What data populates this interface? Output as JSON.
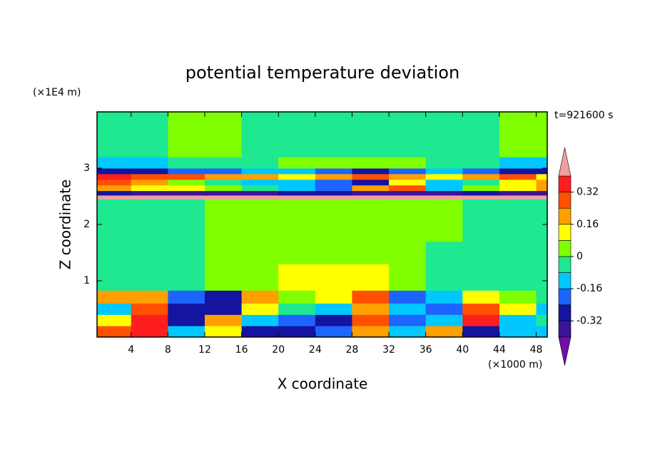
{
  "chart_data": {
    "type": "contourf",
    "title": "potential temperature deviation",
    "x_label": "X coordinate",
    "y_label": "Z coordinate",
    "x_unit": "(×1000 m)",
    "y_unit": "(×1E4 m)",
    "annotation": "t=921600 s",
    "xlim": [
      0.3,
      49.2
    ],
    "ylim": [
      0,
      4
    ],
    "xticks": [
      4,
      8,
      12,
      16,
      20,
      24,
      28,
      32,
      36,
      40,
      44,
      48
    ],
    "yticks": [
      1,
      2,
      3
    ],
    "levels": [
      -0.4,
      -0.32,
      -0.24,
      -0.16,
      -0.08,
      0,
      0.08,
      0.16,
      0.24,
      0.32,
      0.4
    ],
    "colors": [
      "#7010a8",
      "#3c1496",
      "#1414a0",
      "#1e64ff",
      "#00c8ff",
      "#1ee890",
      "#80ff00",
      "#ffff00",
      "#ffa000",
      "#ff5000",
      "#ff1e1e",
      "#f0a0a0"
    ],
    "colorbar_ticks": [
      0.32,
      0.16,
      0,
      -0.16,
      -0.32
    ],
    "x": [
      0,
      4,
      8,
      12,
      16,
      20,
      24,
      28,
      32,
      36,
      40,
      44,
      48,
      52
    ],
    "y": [
      0,
      0.2,
      0.4,
      0.6,
      0.83,
      1.3,
      1.7,
      2.45,
      2.52,
      2.6,
      2.7,
      2.8,
      2.9,
      3.0,
      3.2,
      4.0
    ],
    "values": [
      [
        0.28,
        0.36,
        -0.12,
        0.12,
        -0.28,
        -0.28,
        -0.2,
        0.2,
        -0.12,
        0.2,
        -0.28,
        -0.12,
        -0.12
      ],
      [
        0.12,
        0.36,
        -0.28,
        0.2,
        -0.12,
        -0.2,
        -0.28,
        0.28,
        -0.2,
        -0.12,
        0.36,
        -0.12,
        -0.04
      ],
      [
        -0.12,
        0.28,
        -0.28,
        -0.28,
        0.12,
        -0.04,
        -0.12,
        0.2,
        -0.12,
        -0.2,
        0.28,
        0.12,
        -0.12
      ],
      [
        0.2,
        0.2,
        -0.2,
        -0.28,
        0.2,
        0.04,
        0.12,
        0.28,
        -0.2,
        -0.12,
        0.12,
        0.04,
        -0.04
      ],
      [
        -0.04,
        -0.04,
        -0.04,
        0.04,
        0.04,
        0.12,
        0.12,
        0.12,
        0.04,
        -0.04,
        -0.04,
        -0.04,
        -0.04
      ],
      [
        -0.04,
        -0.04,
        -0.04,
        0.04,
        0.04,
        0.04,
        0.04,
        0.04,
        0.04,
        -0.04,
        -0.04,
        -0.04,
        -0.04
      ],
      [
        -0.04,
        -0.04,
        -0.04,
        0.04,
        0.04,
        0.04,
        0.04,
        0.04,
        0.04,
        0.04,
        -0.04,
        -0.04,
        -0.04
      ],
      [
        0.45,
        0.45,
        0.45,
        0.45,
        0.45,
        0.45,
        0.45,
        0.45,
        0.45,
        0.45,
        0.45,
        0.45,
        0.45
      ],
      [
        -0.28,
        -0.36,
        -0.36,
        -0.36,
        -0.36,
        -0.28,
        -0.28,
        -0.36,
        -0.36,
        -0.36,
        -0.28,
        -0.36,
        -0.36
      ],
      [
        0.2,
        0.12,
        0.12,
        0.04,
        -0.04,
        -0.12,
        -0.2,
        0.2,
        0.28,
        -0.12,
        0.04,
        0.12,
        0.2
      ],
      [
        0.28,
        0.2,
        0.04,
        -0.04,
        -0.12,
        -0.12,
        -0.2,
        -0.28,
        0.12,
        -0.12,
        -0.04,
        0.12,
        0.2
      ],
      [
        0.36,
        0.28,
        0.28,
        0.2,
        0.2,
        0.12,
        0.2,
        0.28,
        0.2,
        0.12,
        0.2,
        0.28,
        0.12
      ],
      [
        -0.28,
        -0.28,
        -0.2,
        -0.2,
        -0.12,
        -0.12,
        -0.2,
        -0.28,
        -0.2,
        -0.12,
        -0.2,
        -0.28,
        -0.28
      ],
      [
        -0.12,
        -0.12,
        -0.04,
        -0.04,
        -0.04,
        0.04,
        0.04,
        0.04,
        0.04,
        -0.04,
        -0.04,
        -0.12,
        -0.12
      ],
      [
        -0.04,
        -0.04,
        0.04,
        0.04,
        -0.04,
        -0.04,
        -0.04,
        -0.04,
        -0.04,
        -0.04,
        -0.04,
        0.04,
        0.04
      ]
    ]
  }
}
